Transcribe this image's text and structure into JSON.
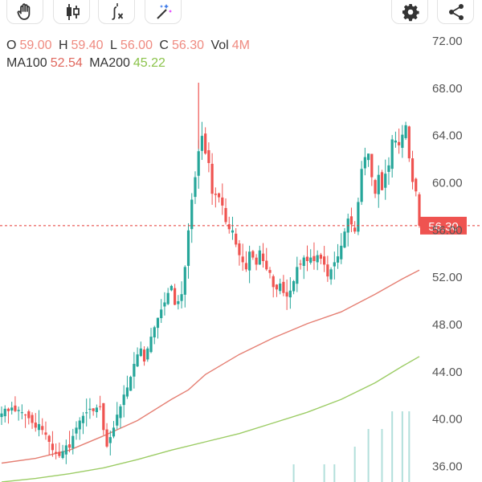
{
  "toolbar": {
    "buttons": [
      {
        "icon": "hand-icon"
      },
      {
        "icon": "candlestick-icon"
      },
      {
        "icon": "function-icon"
      },
      {
        "icon": "magic-wand-icon"
      },
      {
        "icon": "settings-gear-icon"
      },
      {
        "icon": "share-icon"
      }
    ]
  },
  "ohlc": {
    "o_label": "O",
    "o_value": "59.00",
    "h_label": "H",
    "h_value": "59.40",
    "l_label": "L",
    "l_value": "56.00",
    "c_label": "C",
    "c_value": "56.30",
    "vol_label": "Vol",
    "vol_value": "4M",
    "ma100_label": "MA100",
    "ma100_value": "52.54",
    "ma200_label": "MA200",
    "ma200_value": "45.22"
  },
  "colors": {
    "up": "#26a69a",
    "down": "#ef5350",
    "ma100": "#e57f73",
    "ma200": "#9ccc65",
    "price_line": "#e53935",
    "price_tag": "#ef5350",
    "volume": "#b2dfdb"
  },
  "chart_data": {
    "type": "candlestick",
    "y_axis_ticks": [
      "72.00",
      "68.00",
      "64.00",
      "60.00",
      "56.00",
      "52.00",
      "48.00",
      "44.00",
      "40.00",
      "36.00"
    ],
    "ylim": [
      34.6,
      75.4
    ],
    "y_axis_position": "right",
    "current_price": 56.3,
    "current_price_label": "56.30",
    "close_path": [
      40.4,
      40.8,
      40.6,
      40.9,
      40.6,
      40.7,
      40.5,
      40.3,
      40.0,
      39.6,
      39.2,
      39.5,
      39.0,
      38.6,
      38.0,
      37.3,
      37.0,
      36.8,
      37.2,
      37.7,
      37.5,
      38.5,
      39.2,
      39.8,
      40.2,
      40.5,
      40.8,
      40.6,
      40.9,
      41.0,
      39.0,
      37.6,
      38.4,
      39.2,
      40.3,
      41.0,
      42.0,
      42.6,
      43.5,
      44.6,
      45.4,
      45.9,
      44.8,
      45.9,
      46.9,
      47.7,
      48.5,
      49.2,
      49.8,
      50.6,
      51.2,
      49.6,
      49.9,
      50.5,
      52.8,
      55.9,
      58.5,
      60.4,
      62.6,
      63.9,
      62.4,
      61.6,
      59.0,
      58.9,
      58.7,
      58.0,
      56.6,
      56.0,
      55.9,
      54.7,
      53.8,
      53.2,
      52.6,
      54.1,
      53.6,
      53.0,
      54.2,
      53.3,
      52.6,
      52.3,
      51.1,
      50.9,
      51.4,
      50.6,
      50.3,
      50.8,
      51.6,
      52.8,
      53.0,
      53.6,
      53.3,
      53.6,
      53.3,
      53.8,
      53.5,
      53.0,
      52.0,
      52.6,
      53.2,
      53.7,
      54.6,
      55.8,
      56.9,
      56.4,
      55.8,
      58.3,
      61.1,
      62.1,
      62.4,
      60.4,
      59.0,
      60.6,
      59.3,
      60.7,
      61.4,
      63.6,
      63.5,
      63.1,
      64.0,
      64.8,
      62.0,
      60.0,
      59.2,
      56.3
    ],
    "candle_count": 124,
    "ma100": {
      "label": "MA100",
      "points": [
        [
          0,
          36.2
        ],
        [
          10,
          36.6
        ],
        [
          20,
          37.3
        ],
        [
          30,
          38.5
        ],
        [
          40,
          39.8
        ],
        [
          50,
          41.6
        ],
        [
          55,
          42.4
        ],
        [
          60,
          43.7
        ],
        [
          70,
          45.4
        ],
        [
          80,
          46.8
        ],
        [
          90,
          48.0
        ],
        [
          100,
          49.0
        ],
        [
          110,
          50.5
        ],
        [
          118,
          51.8
        ],
        [
          123,
          52.54
        ]
      ]
    },
    "ma200": {
      "label": "MA200",
      "points": [
        [
          0,
          34.6
        ],
        [
          10,
          34.9
        ],
        [
          20,
          35.3
        ],
        [
          30,
          35.8
        ],
        [
          40,
          36.5
        ],
        [
          50,
          37.3
        ],
        [
          60,
          38.0
        ],
        [
          70,
          38.7
        ],
        [
          80,
          39.6
        ],
        [
          90,
          40.5
        ],
        [
          100,
          41.6
        ],
        [
          110,
          43.0
        ],
        [
          118,
          44.4
        ],
        [
          123,
          45.22
        ]
      ]
    },
    "volume": [
      [
        86,
        1
      ],
      [
        95,
        1
      ],
      [
        98,
        1
      ],
      [
        104,
        2
      ],
      [
        108,
        3
      ],
      [
        112,
        3
      ],
      [
        115,
        4
      ],
      [
        118,
        4
      ],
      [
        120,
        4
      ]
    ]
  }
}
